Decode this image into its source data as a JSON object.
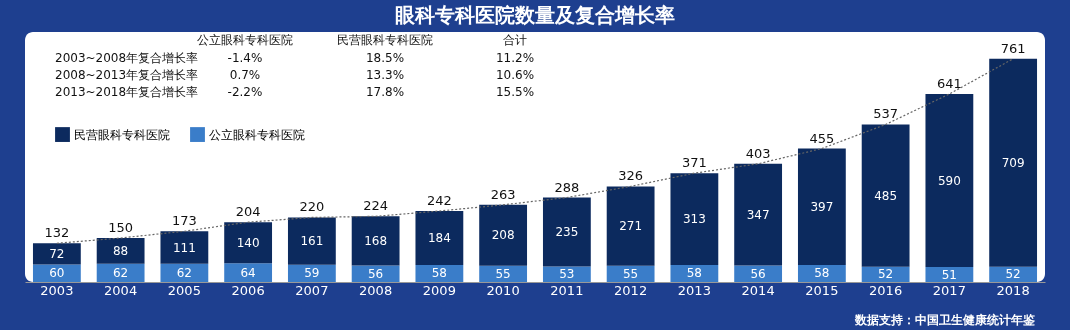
{
  "chart_data": {
    "type": "bar",
    "title": "眼科专科医院数量及复合增长率",
    "categories": [
      "2003",
      "2004",
      "2005",
      "2006",
      "2007",
      "2008",
      "2009",
      "2010",
      "2011",
      "2012",
      "2013",
      "2014",
      "2015",
      "2016",
      "2017",
      "2018"
    ],
    "stacked": true,
    "data_labels": true,
    "legend": "left",
    "tick_labels": "x",
    "series": [
      {
        "name": "公立眼科专科医院",
        "color": "#3a7dc9",
        "values": [
          60,
          62,
          62,
          64,
          59,
          56,
          58,
          55,
          53,
          55,
          58,
          56,
          58,
          52,
          51,
          52
        ]
      },
      {
        "name": "民营眼科专科医院",
        "color": "#0c2a5e",
        "values": [
          72,
          88,
          111,
          140,
          161,
          168,
          184,
          208,
          235,
          271,
          313,
          347,
          397,
          485,
          590,
          709
        ]
      },
      {
        "type": "line",
        "color": "#666666",
        "line_style": "dotted",
        "values": [
          132,
          150,
          173,
          204,
          220,
          224,
          242,
          263,
          288,
          326,
          371,
          403,
          455,
          537,
          641,
          761
        ],
        "value_labels": [
          "132",
          "150",
          "173",
          "204",
          "220",
          "224",
          "242",
          "263",
          "288",
          "326",
          "371",
          "403",
          "455",
          "537",
          "641",
          "761"
        ]
      }
    ],
    "annotations": [
      "公立眼科专科医院",
      "民营眼科专科医院",
      "合计",
      "2003~2008年复合增长率",
      "-1.4%",
      "18.5%",
      "11.2%",
      "2008~2013年复合增长率",
      "0.7%",
      "13.3%",
      "10.6%",
      "2013~2018年复合增长率",
      "-2.2%",
      "17.8%",
      "15.5%",
      "数据支持：中国卫生健康统计年鉴"
    ]
  }
}
